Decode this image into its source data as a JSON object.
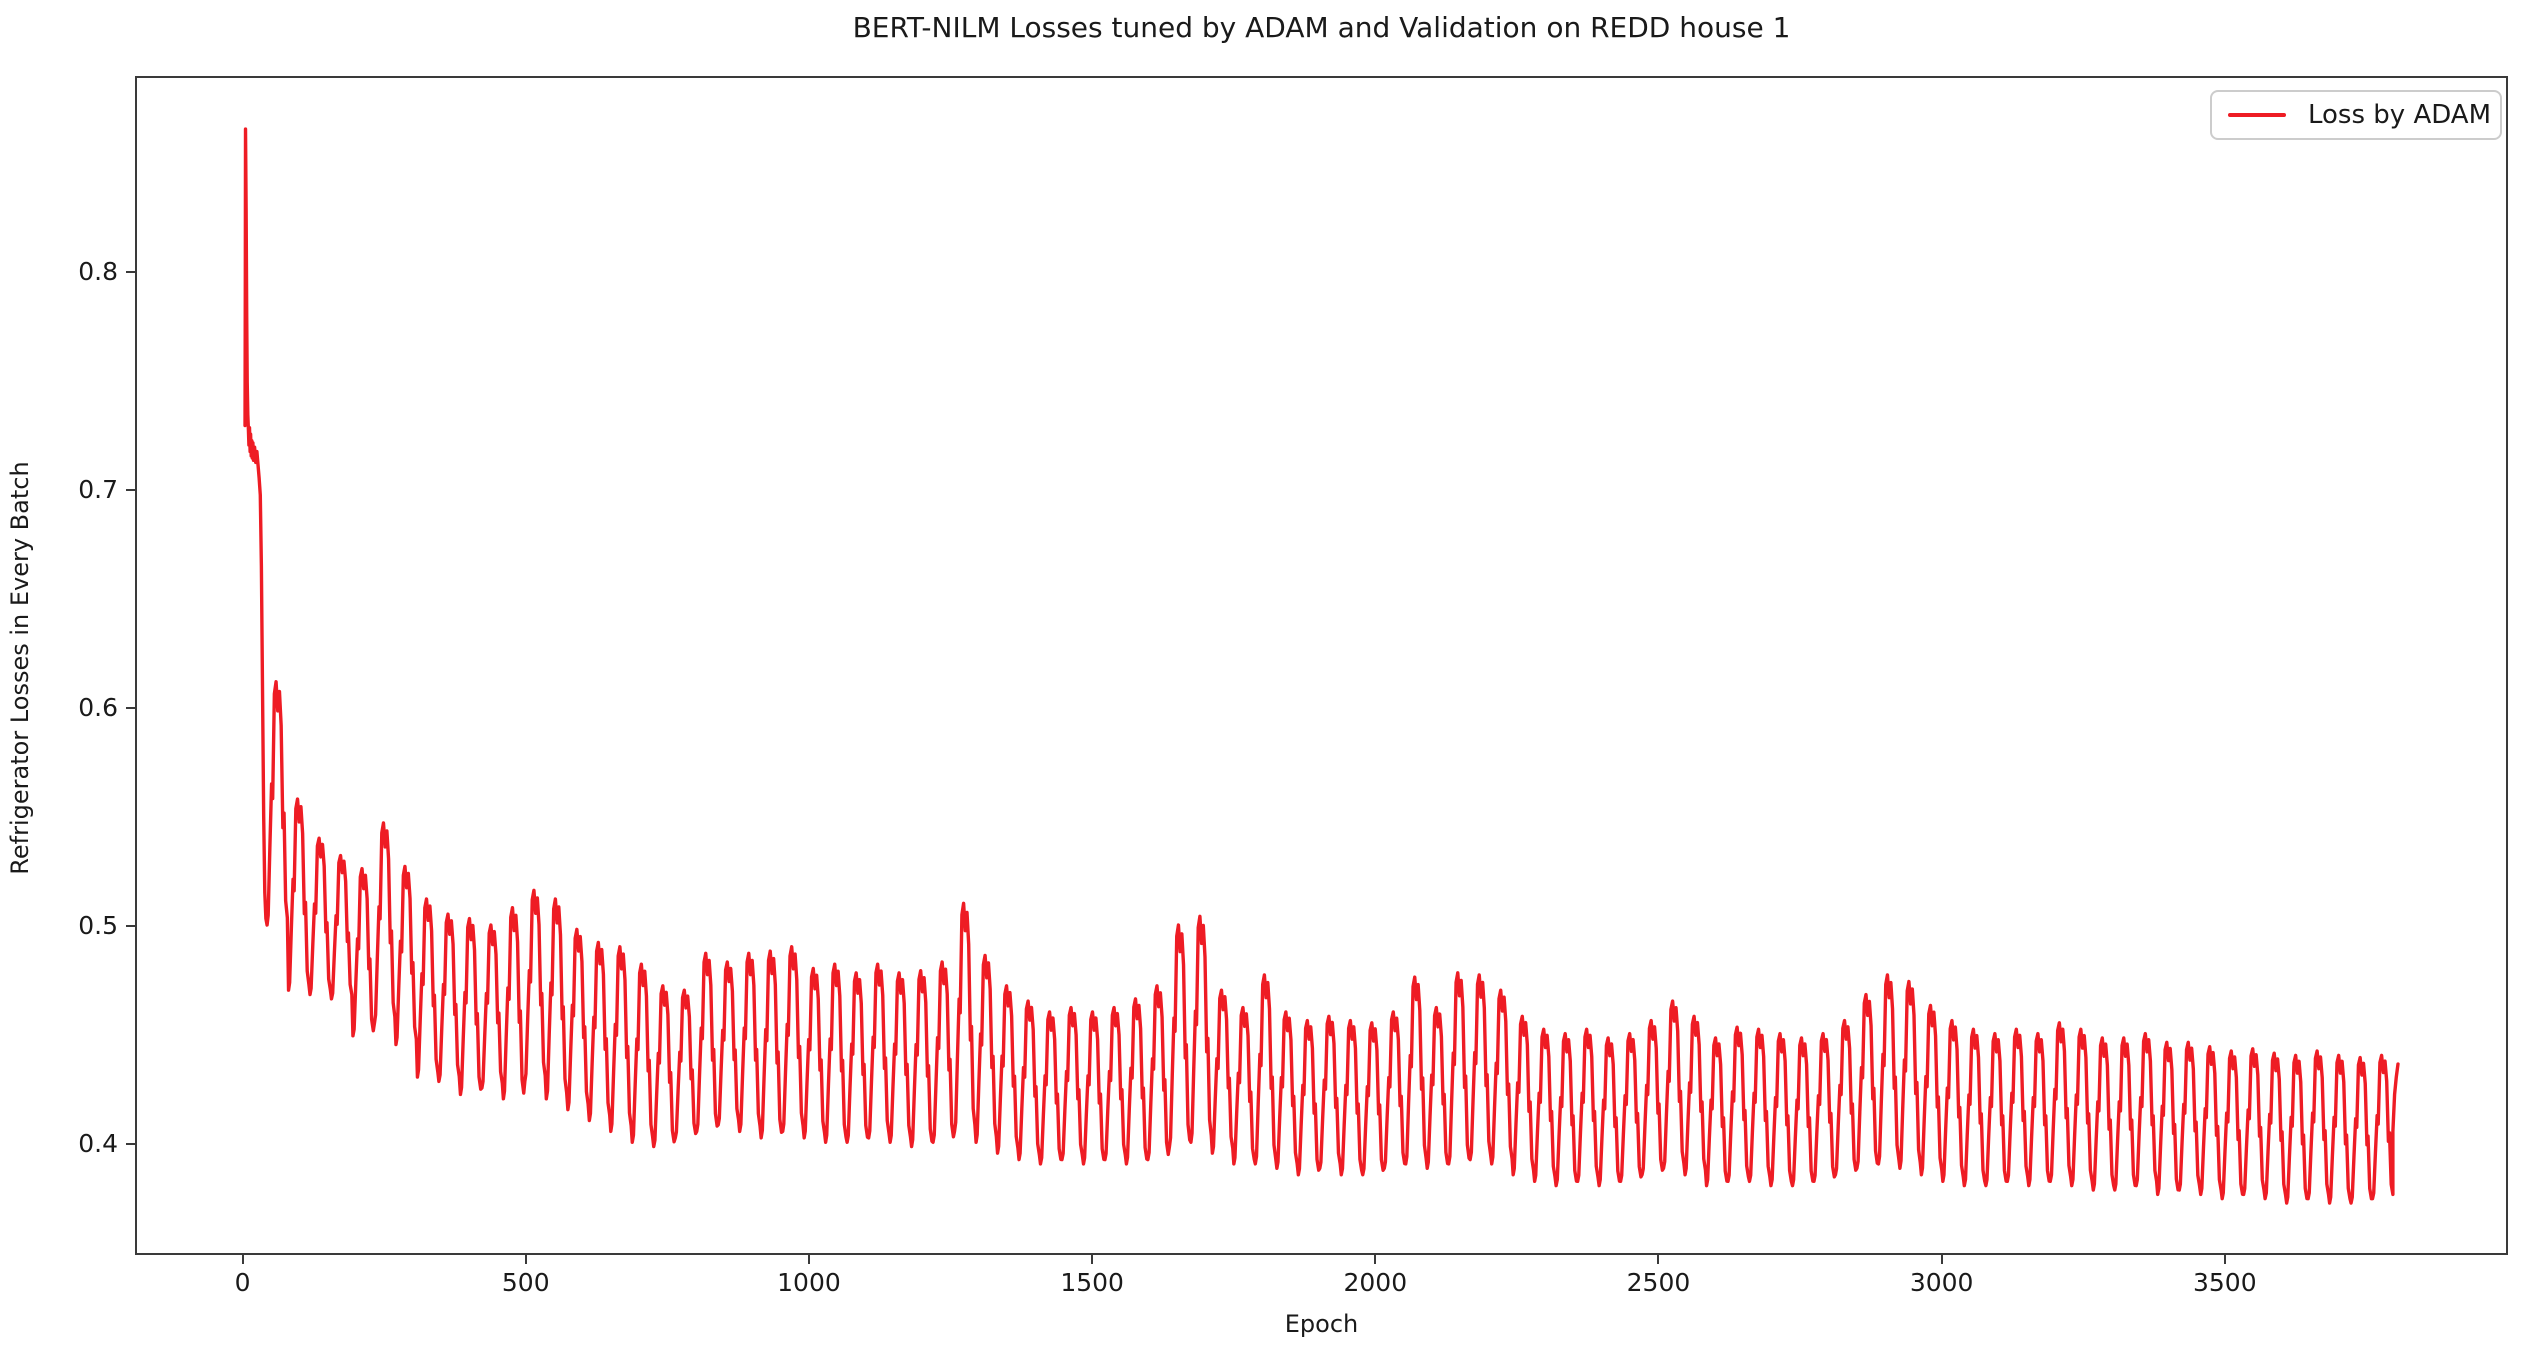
{
  "figure": {
    "title": "BERT-NILM Losses tuned by ADAM and Validation on REDD house 1",
    "xlabel": "Epoch",
    "ylabel": "Refrigerator Losses in Every Batch",
    "legend_label": "Loss by ADAM",
    "colors": {
      "line": "#ee1c24",
      "spine": "#3a3a3a",
      "text": "#1a1a1a",
      "legend_border": "#cccccc",
      "background": "#ffffff"
    }
  },
  "chart_data": {
    "type": "line",
    "title": "BERT-NILM Losses tuned by ADAM and Validation on REDD house 1",
    "xlabel": "Epoch",
    "ylabel": "Refrigerator Losses in Every Batch",
    "legend": [
      "Loss by ADAM"
    ],
    "legend_position": "upper right",
    "grid": false,
    "series_color": "#ee1c24",
    "xlim": [
      -190,
      4000
    ],
    "ylim": [
      0.349,
      0.89
    ],
    "xticks": [
      0,
      500,
      1000,
      1500,
      2000,
      2500,
      3000,
      3500
    ],
    "yticks": [
      0.4,
      0.5,
      0.6,
      0.7,
      0.8
    ],
    "description": "Training loss per batch: initial spike to 0.8665 near epoch 2, plateau near 0.72 until ~epoch 28, steep drop to ~0.50, then ~38-epoch periodic oscillations whose peaks decay from 0.61 to ~0.44 (with local bumps near epochs 250, 500, 1280, 1680, 2150, 2900) and whose minima decay from 0.47 to ~0.372, ending at ~0.436 at epoch ~3809.",
    "transient_points": [
      [
        1,
        0.73
      ],
      [
        1.5,
        0.8
      ],
      [
        2,
        0.8665
      ],
      [
        3,
        0.83
      ],
      [
        4,
        0.78
      ],
      [
        5,
        0.75
      ],
      [
        6,
        0.735
      ],
      [
        7,
        0.728
      ],
      [
        8,
        0.721
      ],
      [
        9,
        0.729
      ],
      [
        10,
        0.718
      ],
      [
        11,
        0.726
      ],
      [
        12,
        0.716
      ],
      [
        13,
        0.723
      ],
      [
        14,
        0.715
      ],
      [
        15,
        0.722
      ],
      [
        16,
        0.714
      ],
      [
        18,
        0.72
      ],
      [
        20,
        0.713
      ],
      [
        22,
        0.718
      ],
      [
        24,
        0.712
      ],
      [
        26,
        0.706
      ],
      [
        28,
        0.698
      ],
      [
        30,
        0.665
      ],
      [
        32,
        0.61
      ],
      [
        34,
        0.55
      ],
      [
        36,
        0.515
      ],
      [
        38,
        0.503
      ]
    ],
    "cycle_shape": {
      "comment": "dt = epoch offsets inside one oscillation cycle; w = fraction between cycle min and cycle peak",
      "dt": [
        0,
        2,
        5,
        8,
        10,
        13,
        16,
        19,
        22,
        25,
        28,
        30,
        33,
        36
      ],
      "w": [
        0.0,
        0.04,
        0.32,
        0.58,
        0.52,
        0.95,
        1.0,
        0.88,
        0.96,
        0.82,
        0.4,
        0.46,
        0.1,
        0.03
      ]
    },
    "cycles_format": "[cycle_start_epoch, peak_value, min_value]",
    "cycles": [
      [
        40,
        0.612,
        0.5
      ],
      [
        78,
        0.558,
        0.47
      ],
      [
        116,
        0.54,
        0.468
      ],
      [
        154,
        0.532,
        0.466
      ],
      [
        192,
        0.526,
        0.449
      ],
      [
        230,
        0.547,
        0.455
      ],
      [
        268,
        0.527,
        0.445
      ],
      [
        306,
        0.512,
        0.43
      ],
      [
        344,
        0.505,
        0.428
      ],
      [
        382,
        0.503,
        0.422
      ],
      [
        420,
        0.5,
        0.425
      ],
      [
        458,
        0.508,
        0.42
      ],
      [
        496,
        0.516,
        0.428
      ],
      [
        534,
        0.512,
        0.42
      ],
      [
        572,
        0.498,
        0.415
      ],
      [
        610,
        0.492,
        0.41
      ],
      [
        648,
        0.49,
        0.405
      ],
      [
        686,
        0.482,
        0.4
      ],
      [
        724,
        0.472,
        0.398
      ],
      [
        762,
        0.47,
        0.402
      ],
      [
        800,
        0.487,
        0.405
      ],
      [
        838,
        0.483,
        0.408
      ],
      [
        876,
        0.487,
        0.405
      ],
      [
        914,
        0.488,
        0.402
      ],
      [
        952,
        0.49,
        0.405
      ],
      [
        990,
        0.48,
        0.402
      ],
      [
        1028,
        0.482,
        0.4
      ],
      [
        1066,
        0.478,
        0.4
      ],
      [
        1104,
        0.482,
        0.402
      ],
      [
        1142,
        0.478,
        0.4
      ],
      [
        1180,
        0.479,
        0.398
      ],
      [
        1218,
        0.483,
        0.4
      ],
      [
        1256,
        0.51,
        0.405
      ],
      [
        1294,
        0.486,
        0.4
      ],
      [
        1332,
        0.472,
        0.395
      ],
      [
        1370,
        0.465,
        0.392
      ],
      [
        1408,
        0.46,
        0.39
      ],
      [
        1446,
        0.462,
        0.392
      ],
      [
        1484,
        0.46,
        0.39
      ],
      [
        1522,
        0.462,
        0.392
      ],
      [
        1560,
        0.466,
        0.39
      ],
      [
        1598,
        0.472,
        0.392
      ],
      [
        1636,
        0.5,
        0.398
      ],
      [
        1674,
        0.504,
        0.4
      ],
      [
        1712,
        0.47,
        0.395
      ],
      [
        1750,
        0.462,
        0.39
      ],
      [
        1788,
        0.477,
        0.39
      ],
      [
        1826,
        0.46,
        0.388
      ],
      [
        1864,
        0.456,
        0.385
      ],
      [
        1902,
        0.458,
        0.388
      ],
      [
        1940,
        0.456,
        0.385
      ],
      [
        1978,
        0.455,
        0.385
      ],
      [
        2016,
        0.46,
        0.388
      ],
      [
        2054,
        0.476,
        0.39
      ],
      [
        2092,
        0.462,
        0.388
      ],
      [
        2130,
        0.478,
        0.39
      ],
      [
        2168,
        0.477,
        0.392
      ],
      [
        2206,
        0.47,
        0.39
      ],
      [
        2244,
        0.458,
        0.385
      ],
      [
        2282,
        0.452,
        0.382
      ],
      [
        2320,
        0.45,
        0.38
      ],
      [
        2358,
        0.452,
        0.382
      ],
      [
        2396,
        0.448,
        0.38
      ],
      [
        2434,
        0.45,
        0.382
      ],
      [
        2472,
        0.456,
        0.385
      ],
      [
        2510,
        0.465,
        0.388
      ],
      [
        2548,
        0.458,
        0.385
      ],
      [
        2586,
        0.448,
        0.38
      ],
      [
        2624,
        0.453,
        0.382
      ],
      [
        2662,
        0.452,
        0.382
      ],
      [
        2700,
        0.45,
        0.38
      ],
      [
        2738,
        0.448,
        0.38
      ],
      [
        2776,
        0.45,
        0.382
      ],
      [
        2814,
        0.456,
        0.385
      ],
      [
        2852,
        0.468,
        0.388
      ],
      [
        2890,
        0.477,
        0.39
      ],
      [
        2928,
        0.474,
        0.388
      ],
      [
        2966,
        0.463,
        0.385
      ],
      [
        3004,
        0.456,
        0.382
      ],
      [
        3042,
        0.452,
        0.38
      ],
      [
        3080,
        0.45,
        0.38
      ],
      [
        3118,
        0.452,
        0.382
      ],
      [
        3156,
        0.45,
        0.38
      ],
      [
        3194,
        0.455,
        0.382
      ],
      [
        3232,
        0.452,
        0.38
      ],
      [
        3270,
        0.448,
        0.378
      ],
      [
        3308,
        0.448,
        0.378
      ],
      [
        3346,
        0.45,
        0.38
      ],
      [
        3384,
        0.446,
        0.376
      ],
      [
        3422,
        0.446,
        0.378
      ],
      [
        3460,
        0.444,
        0.376
      ],
      [
        3498,
        0.442,
        0.374
      ],
      [
        3536,
        0.443,
        0.376
      ],
      [
        3574,
        0.441,
        0.374
      ],
      [
        3612,
        0.44,
        0.372
      ],
      [
        3650,
        0.442,
        0.374
      ],
      [
        3688,
        0.44,
        0.372
      ],
      [
        3726,
        0.439,
        0.372
      ],
      [
        3764,
        0.44,
        0.374
      ]
    ],
    "tail_points": [
      [
        3800,
        0.405
      ],
      [
        3803,
        0.422
      ],
      [
        3806,
        0.43
      ],
      [
        3809,
        0.436
      ]
    ]
  }
}
